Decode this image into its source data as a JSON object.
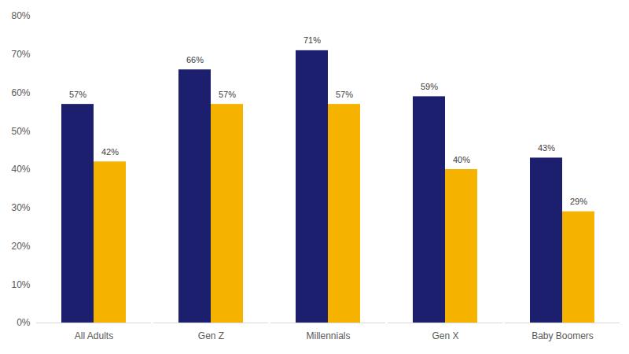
{
  "chart_data": {
    "type": "bar",
    "categories": [
      "All Adults",
      "Gen Z",
      "Millennials",
      "Gen X",
      "Baby Boomers"
    ],
    "series": [
      {
        "color": "#1b1f6e",
        "values": [
          57,
          66,
          71,
          59,
          43
        ],
        "value_labels": [
          "57%",
          "66%",
          "71%",
          "59%",
          "43%"
        ]
      },
      {
        "color": "#f5b300",
        "values": [
          42,
          57,
          57,
          40,
          29
        ],
        "value_labels": [
          "42%",
          "57%",
          "57%",
          "40%",
          "29%"
        ]
      }
    ],
    "ylim": [
      0,
      80
    ],
    "yticks": [
      {
        "value": 0,
        "label": "0%"
      },
      {
        "value": 10,
        "label": "10%"
      },
      {
        "value": 20,
        "label": "20%"
      },
      {
        "value": 30,
        "label": "30%"
      },
      {
        "value": 40,
        "label": "40%"
      },
      {
        "value": 50,
        "label": "50%"
      },
      {
        "value": 60,
        "label": "60%"
      },
      {
        "value": 70,
        "label": "70%"
      },
      {
        "value": 80,
        "label": "80%"
      }
    ],
    "grid": false,
    "data_labels": true
  }
}
